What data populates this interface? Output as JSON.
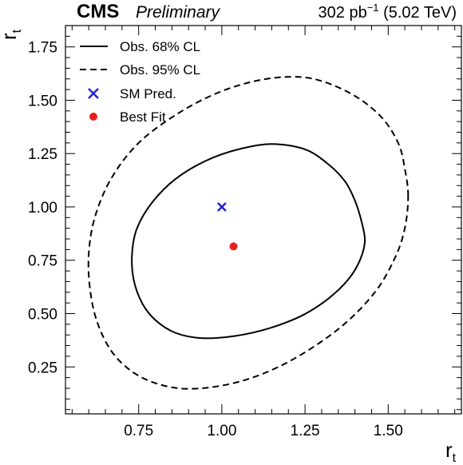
{
  "header": {
    "experiment": "CMS",
    "status": "Preliminary",
    "lumi_value": "302 pb",
    "lumi_exponent": "−1",
    "lumi_energy": " (5.02 TeV)"
  },
  "colors": {
    "sm_pred": "#1f1fd6",
    "best_fit": "#e8201c",
    "contour": "#000000"
  },
  "chart_data": {
    "type": "contour",
    "xlabel_main": "r",
    "xlabel_sub": "t",
    "ylabel_main": "r",
    "ylabel_sub": "t",
    "xlim": [
      0.53,
      1.72
    ],
    "ylim": [
      0.03,
      1.85
    ],
    "x_ticks": [
      0.75,
      1.0,
      1.25,
      1.5
    ],
    "x_tick_labels": [
      "0.75",
      "1.00",
      "1.25",
      "1.50"
    ],
    "y_ticks": [
      0.25,
      0.5,
      0.75,
      1.0,
      1.25,
      1.5,
      1.75
    ],
    "y_tick_labels": [
      "0.25",
      "0.50",
      "0.75",
      "1.00",
      "1.25",
      "1.50",
      "1.75"
    ],
    "legend_position": "top-left",
    "legend": [
      {
        "label": "Obs. 68% CL",
        "style": "solid-line"
      },
      {
        "label": "Obs. 95% CL",
        "style": "dashed-line"
      },
      {
        "label": "SM Pred.",
        "style": "blue-x-marker"
      },
      {
        "label": "Best Fit",
        "style": "red-dot-marker"
      }
    ],
    "contours": [
      {
        "name": "Obs. 68% CL",
        "dash": false,
        "points": [
          [
            1.43,
            0.84
          ],
          [
            1.42,
            0.93
          ],
          [
            1.4,
            1.03
          ],
          [
            1.37,
            1.12
          ],
          [
            1.32,
            1.2
          ],
          [
            1.25,
            1.27
          ],
          [
            1.15,
            1.295
          ],
          [
            1.05,
            1.27
          ],
          [
            0.95,
            1.215
          ],
          [
            0.86,
            1.13
          ],
          [
            0.79,
            1.02
          ],
          [
            0.745,
            0.9
          ],
          [
            0.73,
            0.78
          ],
          [
            0.735,
            0.66
          ],
          [
            0.76,
            0.55
          ],
          [
            0.8,
            0.47
          ],
          [
            0.86,
            0.41
          ],
          [
            0.94,
            0.385
          ],
          [
            1.04,
            0.395
          ],
          [
            1.14,
            0.43
          ],
          [
            1.24,
            0.49
          ],
          [
            1.32,
            0.57
          ],
          [
            1.38,
            0.66
          ],
          [
            1.415,
            0.75
          ]
        ]
      },
      {
        "name": "Obs. 95% CL",
        "dash": true,
        "points": [
          [
            1.56,
            1.05
          ],
          [
            1.55,
            1.18
          ],
          [
            1.53,
            1.3
          ],
          [
            1.48,
            1.42
          ],
          [
            1.4,
            1.52
          ],
          [
            1.3,
            1.59
          ],
          [
            1.21,
            1.61
          ],
          [
            1.1,
            1.59
          ],
          [
            0.98,
            1.53
          ],
          [
            0.86,
            1.43
          ],
          [
            0.75,
            1.3
          ],
          [
            0.67,
            1.14
          ],
          [
            0.62,
            0.96
          ],
          [
            0.6,
            0.78
          ],
          [
            0.605,
            0.6
          ],
          [
            0.63,
            0.44
          ],
          [
            0.68,
            0.3
          ],
          [
            0.76,
            0.2
          ],
          [
            0.87,
            0.15
          ],
          [
            0.99,
            0.16
          ],
          [
            1.11,
            0.21
          ],
          [
            1.23,
            0.3
          ],
          [
            1.36,
            0.44
          ],
          [
            1.46,
            0.6
          ],
          [
            1.52,
            0.76
          ],
          [
            1.55,
            0.9
          ]
        ]
      }
    ],
    "sm_prediction": {
      "x": 1.0,
      "y": 1.0
    },
    "best_fit": {
      "x": 1.035,
      "y": 0.815
    }
  }
}
